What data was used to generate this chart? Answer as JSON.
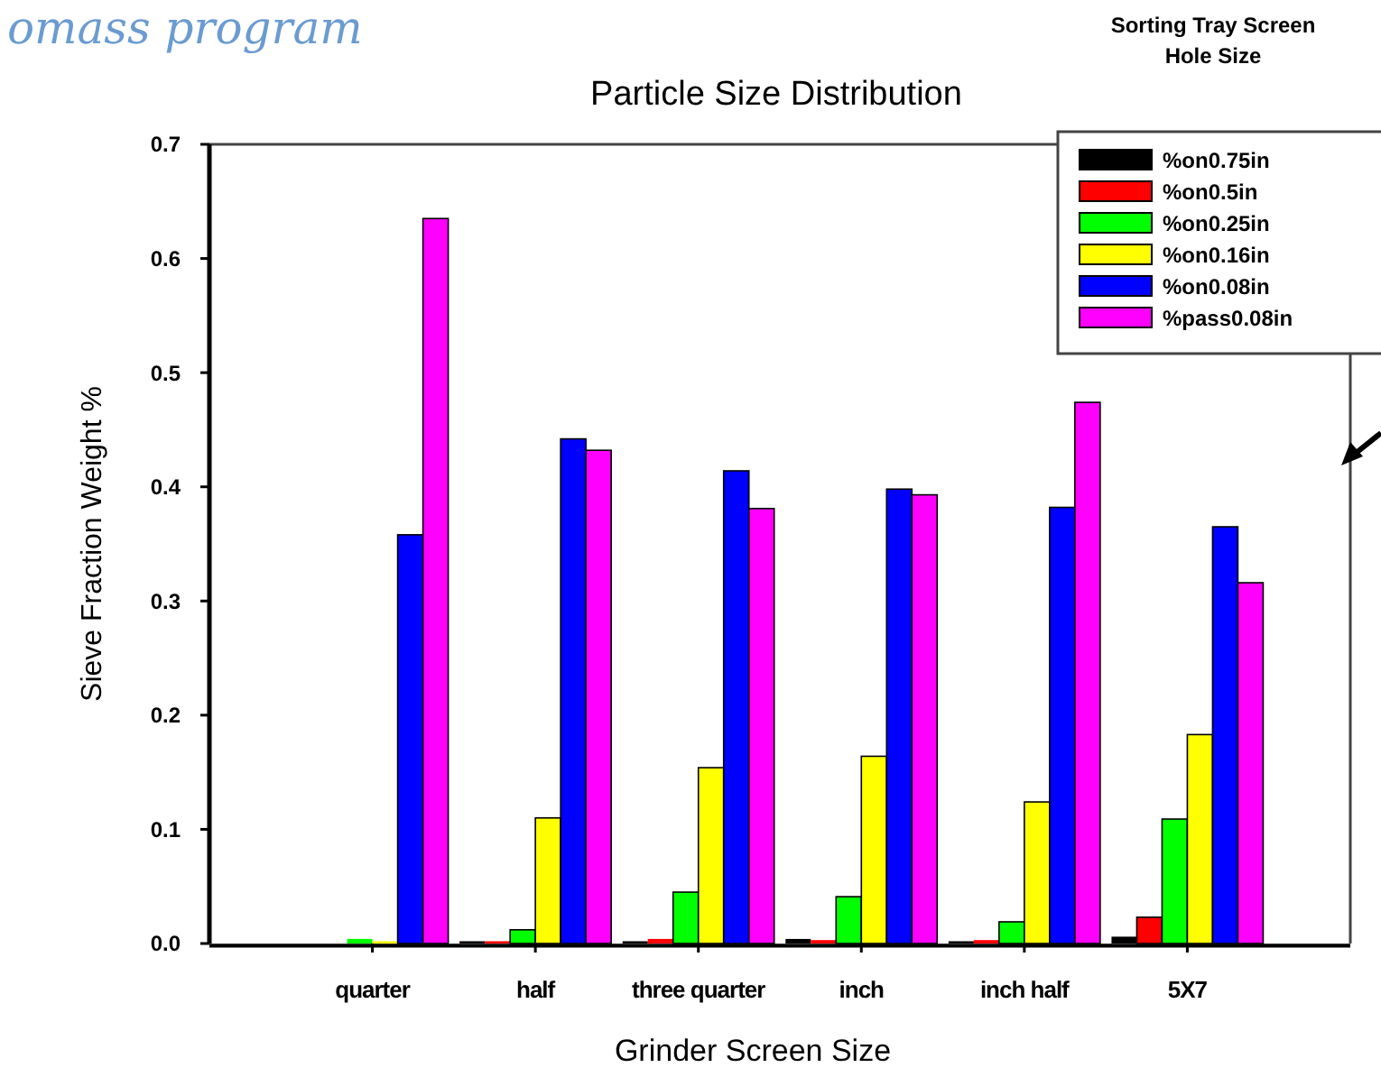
{
  "chart_data": {
    "type": "bar",
    "title": "Particle Size Distribution",
    "xlabel": "Grinder Screen Size",
    "ylabel": "Sieve Fraction Weight %",
    "legend_title": "Sorting Tray Screen Hole Size",
    "annotations": [
      "omass program"
    ],
    "categories": [
      "quarter",
      "half",
      "three quarter",
      "inch",
      "inch half",
      "5X7"
    ],
    "series": [
      {
        "name": "%on0.75in",
        "color": "#000000",
        "values": [
          0,
          0.002,
          0.002,
          0.004,
          0.002,
          0.006
        ]
      },
      {
        "name": "%on0.5in",
        "color": "#ff0000",
        "values": [
          0,
          0.002,
          0.004,
          0.003,
          0.003,
          0.023
        ]
      },
      {
        "name": "%on0.25in",
        "color": "#00ff00",
        "values": [
          0.004,
          0.012,
          0.045,
          0.041,
          0.019,
          0.109
        ]
      },
      {
        "name": "%on0.16in",
        "color": "#ffff00",
        "values": [
          0.002,
          0.11,
          0.154,
          0.164,
          0.124,
          0.183
        ]
      },
      {
        "name": "%on0.08in",
        "color": "#0000ff",
        "values": [
          0.358,
          0.442,
          0.414,
          0.398,
          0.382,
          0.365
        ]
      },
      {
        "name": "%pass0.08in",
        "color": "#ff00ff",
        "values": [
          0.635,
          0.432,
          0.381,
          0.393,
          0.474,
          0.316
        ]
      }
    ],
    "ylim": [
      0,
      0.7
    ],
    "yticks": [
      {
        "value": 0,
        "label": "0.0"
      },
      0.1,
      0.2,
      0.3,
      0.4,
      0.5,
      0.6,
      0.7
    ],
    "legend": "top right"
  }
}
